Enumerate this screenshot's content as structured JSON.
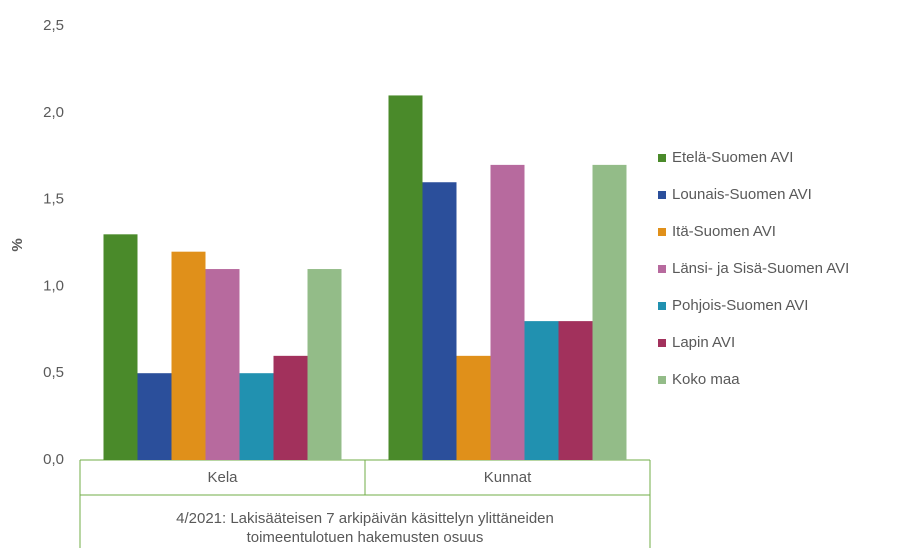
{
  "chart_data": {
    "type": "bar",
    "y_label": "%",
    "x_label": [
      "4/2021: Lakisääteisen 7 arkipäivän käsittelyn ylittäneiden",
      "toimeentulotuen hakemusten osuus"
    ],
    "categories": [
      "Kela",
      "Kunnat"
    ],
    "series": [
      {
        "name": "Etelä-Suomen AVI",
        "color": "#4a8a2a",
        "values": [
          1.3,
          2.1
        ]
      },
      {
        "name": "Lounais-Suomen AVI",
        "color": "#2b4f9b",
        "values": [
          0.5,
          1.6
        ]
      },
      {
        "name": "Itä-Suomen AVI",
        "color": "#e0901a",
        "values": [
          1.2,
          0.6
        ]
      },
      {
        "name": "Länsi- ja Sisä-Suomen AVI",
        "color": "#b76a9e",
        "values": [
          1.1,
          1.7
        ]
      },
      {
        "name": "Pohjois-Suomen AVI",
        "color": "#2191b0",
        "values": [
          0.5,
          0.8
        ]
      },
      {
        "name": "Lapin AVI",
        "color": "#a2315c",
        "values": [
          0.6,
          0.8
        ]
      },
      {
        "name": "Koko maa",
        "color": "#93bc88",
        "values": [
          1.1,
          1.7
        ]
      }
    ],
    "ylim": [
      0,
      2.5
    ],
    "yticks": [
      {
        "value": 0,
        "label": "0,0"
      },
      {
        "value": 0.5,
        "label": "0,5"
      },
      {
        "value": 1,
        "label": "1,0"
      },
      {
        "value": 1.5,
        "label": "1,5"
      },
      {
        "value": 2,
        "label": "2,0"
      },
      {
        "value": 2.5,
        "label": "2,5"
      }
    ],
    "grid": false,
    "legend": "right"
  }
}
